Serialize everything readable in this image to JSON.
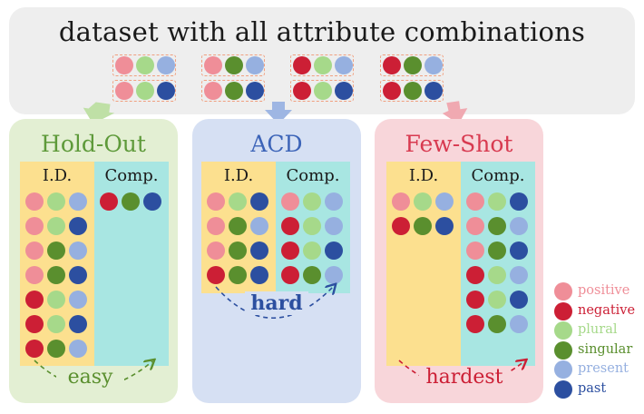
{
  "title": "dataset with all attribute combinations",
  "colors": {
    "positive": "#ef8e98",
    "negative": "#cc1f35",
    "plural": "#a6d98a",
    "singular": "#5a8f2e",
    "present": "#96b0e0",
    "past": "#2c4fa0"
  },
  "panels": {
    "holdout": {
      "title": "Hold-Out",
      "id_label": "I.D.",
      "comp_label": "Comp.",
      "hint": "easy"
    },
    "acd": {
      "title": "ACD",
      "id_label": "I.D.",
      "comp_label": "Comp.",
      "hint": "hard"
    },
    "fewshot": {
      "title": "Few-Shot",
      "id_label": "I.D.",
      "comp_label": "Comp.",
      "hint": "hardest"
    }
  },
  "legend": [
    {
      "label": "positive",
      "color_key": "positive",
      "text_color": "#ef8e98"
    },
    {
      "label": "negative",
      "color_key": "negative",
      "text_color": "#cc1f35"
    },
    {
      "label": "plural",
      "color_key": "plural",
      "text_color": "#a6d98a"
    },
    {
      "label": "singular",
      "color_key": "singular",
      "text_color": "#5a8f2e"
    },
    {
      "label": "present",
      "color_key": "present",
      "text_color": "#96b0e0"
    },
    {
      "label": "past",
      "color_key": "past",
      "text_color": "#2c4fa0"
    }
  ],
  "dataset_combinations": [
    [
      "positive",
      "plural",
      "present"
    ],
    [
      "positive",
      "plural",
      "past"
    ],
    [
      "positive",
      "singular",
      "present"
    ],
    [
      "positive",
      "singular",
      "past"
    ],
    [
      "negative",
      "plural",
      "present"
    ],
    [
      "negative",
      "plural",
      "past"
    ],
    [
      "negative",
      "singular",
      "present"
    ],
    [
      "negative",
      "singular",
      "past"
    ]
  ],
  "holdout_id": [
    [
      "positive",
      "plural",
      "present"
    ],
    [
      "positive",
      "plural",
      "past"
    ],
    [
      "positive",
      "singular",
      "present"
    ],
    [
      "positive",
      "singular",
      "past"
    ],
    [
      "negative",
      "plural",
      "present"
    ],
    [
      "negative",
      "plural",
      "past"
    ],
    [
      "negative",
      "singular",
      "present"
    ]
  ],
  "holdout_comp": [
    [
      "negative",
      "singular",
      "past"
    ]
  ],
  "acd_id": [
    [
      "positive",
      "plural",
      "past"
    ],
    [
      "positive",
      "singular",
      "present"
    ],
    [
      "positive",
      "singular",
      "past"
    ],
    [
      "negative",
      "singular",
      "past"
    ]
  ],
  "acd_comp": [
    [
      "positive",
      "plural",
      "present"
    ],
    [
      "negative",
      "plural",
      "present"
    ],
    [
      "negative",
      "plural",
      "past"
    ],
    [
      "negative",
      "singular",
      "present"
    ]
  ],
  "fewshot_id": [
    [
      "positive",
      "plural",
      "present"
    ],
    [
      "negative",
      "singular",
      "past"
    ]
  ],
  "fewshot_comp": [
    [
      "positive",
      "plural",
      "past"
    ],
    [
      "positive",
      "singular",
      "present"
    ],
    [
      "positive",
      "singular",
      "past"
    ],
    [
      "negative",
      "plural",
      "present"
    ],
    [
      "negative",
      "plural",
      "past"
    ],
    [
      "negative",
      "singular",
      "present"
    ]
  ]
}
